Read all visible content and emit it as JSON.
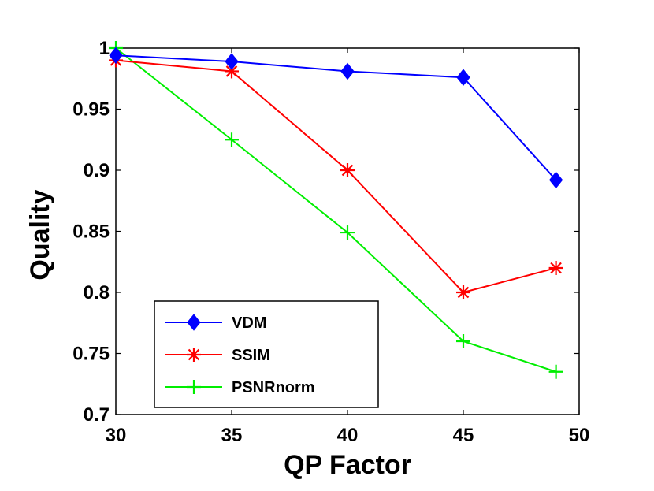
{
  "chart_data": {
    "type": "line",
    "title": "",
    "xlabel": "QP Factor",
    "ylabel": "Quality",
    "xlim": [
      30,
      50
    ],
    "ylim": [
      0.7,
      1.0
    ],
    "xticks": [
      30,
      35,
      40,
      45,
      50
    ],
    "yticks": [
      0.7,
      0.75,
      0.8,
      0.85,
      0.9,
      0.95,
      1.0
    ],
    "xtick_labels": [
      "30",
      "35",
      "40",
      "45",
      "50"
    ],
    "ytick_labels": [
      "0.7",
      "0.75",
      "0.8",
      "0.85",
      "0.9",
      "0.95",
      "1"
    ],
    "grid": false,
    "legend_position": "bottom-left",
    "x": [
      30,
      35,
      40,
      45,
      49
    ],
    "series": [
      {
        "name": "VDM",
        "color": "#0000ff",
        "marker": "diamond",
        "values": [
          0.994,
          0.989,
          0.981,
          0.976,
          0.892
        ]
      },
      {
        "name": "SSIM",
        "color": "#ff0000",
        "marker": "asterisk",
        "values": [
          0.99,
          0.981,
          0.9,
          0.8,
          0.82
        ]
      },
      {
        "name": "PSNRnorm",
        "color": "#00ee00",
        "marker": "plus",
        "values": [
          1.0,
          0.925,
          0.849,
          0.76,
          0.735
        ]
      }
    ]
  }
}
